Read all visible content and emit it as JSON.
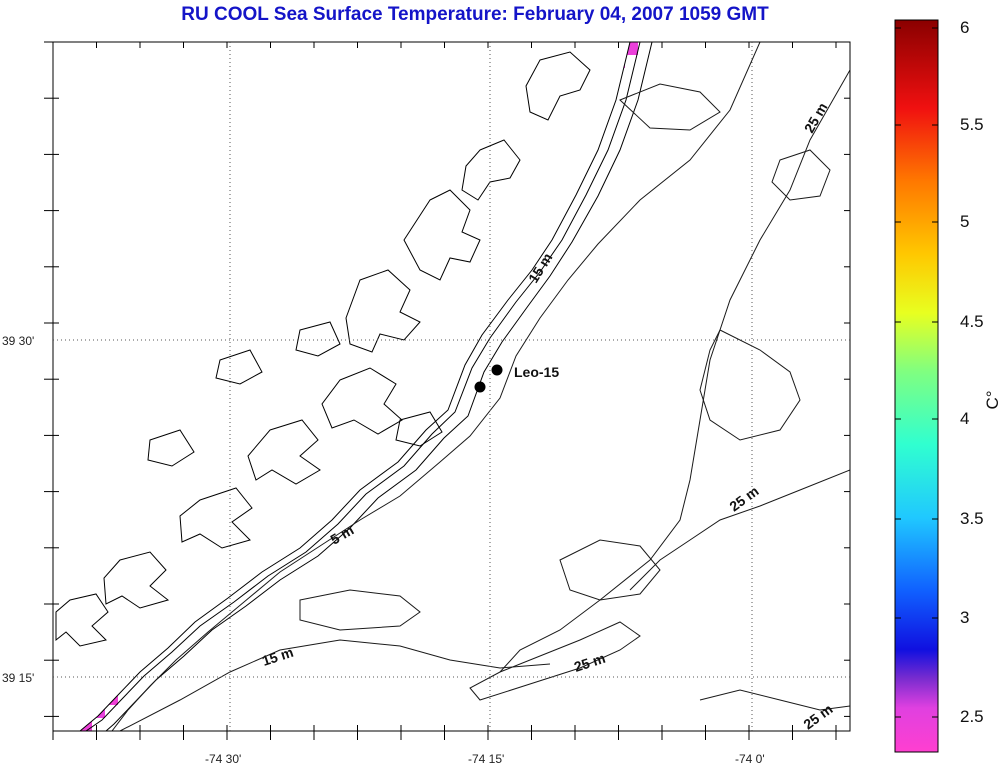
{
  "title": "RU COOL  Sea Surface Temperature:  February 04, 2007 1059 GMT",
  "map": {
    "lat_labels": [
      "39 30'",
      "39 15'"
    ],
    "lon_labels": [
      "-74 30'",
      "-74 15'",
      "-74 0'"
    ],
    "station_label": "Leo-15",
    "contour_labels": [
      "15 m",
      "5 m",
      "15 m",
      "25 m",
      "25 m",
      "25 m",
      "25 m"
    ],
    "land_color": "#ffffff",
    "coast_color": "#000000"
  },
  "colorbar": {
    "unit": "C°",
    "ticks": [
      "6",
      "5.5",
      "5",
      "4.5",
      "4",
      "3.5",
      "3",
      "2.5"
    ],
    "min": 2.35,
    "max": 6.0,
    "colormap": "jet-with-magenta-low"
  }
}
